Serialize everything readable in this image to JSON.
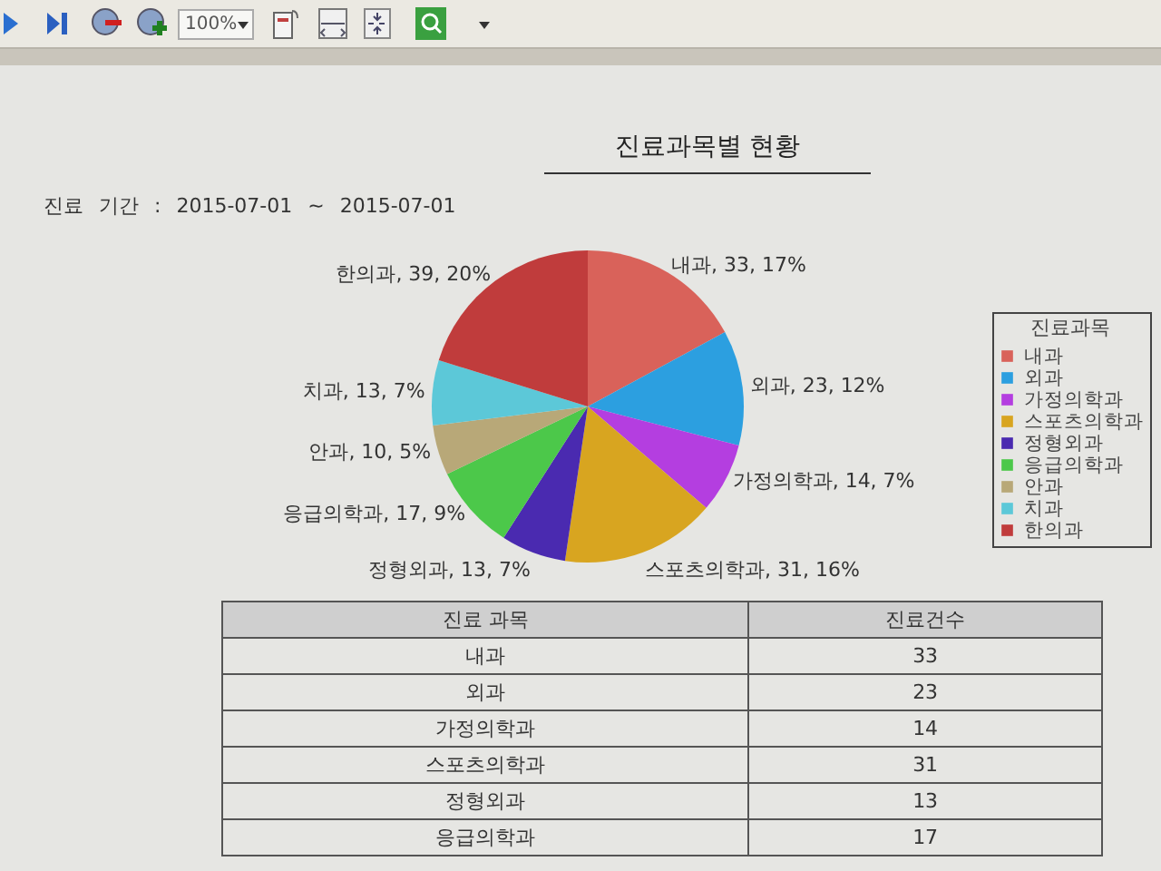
{
  "chart_data": {
    "type": "pie",
    "title": "진료과목별 현황",
    "subtitle": "진료 기간 : 2015-07-01 ~ 2015-07-01",
    "legend_title": "진료과목",
    "categories": [
      "내과",
      "외과",
      "가정의학과",
      "스포츠의학과",
      "정형외과",
      "응급의학과",
      "안과",
      "치과",
      "한의과"
    ],
    "values": [
      33,
      23,
      14,
      31,
      13,
      17,
      10,
      13,
      39
    ],
    "colors": [
      "#d9625a",
      "#2c9fe0",
      "#b43ee0",
      "#d8a520",
      "#4a2ab0",
      "#4cc84a",
      "#b8a878",
      "#5cc8d8",
      "#c03c3c"
    ],
    "value_labels": [
      "내과, 33, 17%",
      "외과, 23, 12%",
      "가정의학과, 14, 7%",
      "스포츠의학과, 31, 16%",
      "정형외과, 13, 7%",
      "응급의학과, 17, 9%",
      "안과, 10, 5%",
      "치과, 13, 7%",
      "한의과, 39, 20%"
    ],
    "legend": "right",
    "annotations": [
      "100%",
      "진료 과목",
      "진료건수",
      "33",
      "23",
      "14",
      "31",
      "13",
      "17"
    ]
  }
}
